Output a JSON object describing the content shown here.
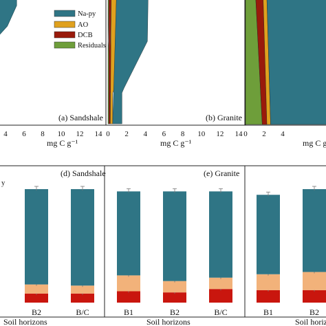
{
  "legend": {
    "entries": [
      {
        "label": "Na-py",
        "color": "#2f7585"
      },
      {
        "label": "AO",
        "color": "#e0a11e"
      },
      {
        "label": "DCB",
        "color": "#991a0b"
      },
      {
        "label": "Residuals",
        "color": "#6e9e3a"
      }
    ]
  },
  "top_panels": {
    "xlabel": "mg C g⁻¹",
    "ticks_a": [
      "4",
      "6",
      "8",
      "10",
      "12",
      "14"
    ],
    "ticks_b": [
      "0",
      "2",
      "4",
      "6",
      "8",
      "10",
      "12",
      "14"
    ],
    "ticks_c": [
      "0",
      "2",
      "4"
    ],
    "label_a": "(a) Sandshale",
    "label_b": "(b) Granite"
  },
  "bottom_panels": {
    "xlabel": "Soil horizons",
    "colors": {
      "top": "#2f7585",
      "mid": "#f2b27a",
      "low": "#c9160e",
      "err": "#777777"
    },
    "label_d": "(d) Sandshale",
    "label_e": "(e) Granite",
    "partial_legend_text": "y",
    "cat_d": [
      "B2",
      "B/C"
    ],
    "cat_e": [
      "B1",
      "B2",
      "B/C"
    ],
    "cat_f": [
      "B1",
      "B2"
    ]
  },
  "chart_data": [
    {
      "type": "area",
      "title": "(a) Sandshale",
      "xlabel": "mg C g⁻¹",
      "xlim": [
        0,
        14
      ],
      "series": [
        {
          "name": "Na-py",
          "depth_profile": [
            {
              "x": 5.2,
              "level": "top"
            },
            {
              "x": 4.2,
              "level": "upper"
            }
          ]
        }
      ]
    },
    {
      "type": "area",
      "title": "(b) Granite",
      "xlabel": "mg C g⁻¹",
      "xlim": [
        0,
        14
      ],
      "series": [
        {
          "name": "Residuals",
          "x_right": [
            0.1,
            0.1
          ]
        },
        {
          "name": "DCB",
          "x_right": [
            0.35,
            0.25
          ]
        },
        {
          "name": "AO",
          "x_right": [
            0.9,
            0.5
          ]
        },
        {
          "name": "Na-py",
          "x_right": [
            4.3,
            1.5
          ]
        }
      ]
    },
    {
      "type": "area",
      "title": "",
      "xlabel": "mg C g⁻¹",
      "xlim": [
        0,
        5
      ],
      "series": [
        {
          "name": "Residuals",
          "x_right": [
            1.1,
            1.8
          ]
        },
        {
          "name": "DCB",
          "x_right": [
            1.9,
            2.3
          ]
        },
        {
          "name": "AO",
          "x_right": [
            2.3,
            2.7
          ]
        },
        {
          "name": "Na-py",
          "x_right": [
            5.0,
            5.0
          ]
        }
      ]
    },
    {
      "type": "bar",
      "title": "(d) Sandshale",
      "categories": [
        "B2",
        "B/C"
      ],
      "series": [
        {
          "key": "low",
          "values": [
            8,
            8
          ]
        },
        {
          "key": "mid",
          "values": [
            8,
            7
          ]
        },
        {
          "key": "top",
          "values": [
            84,
            85
          ]
        }
      ],
      "ylim": [
        0,
        100
      ]
    },
    {
      "type": "bar",
      "title": "(e) Granite",
      "categories": [
        "B1",
        "B2",
        "B/C"
      ],
      "series": [
        {
          "key": "low",
          "values": [
            10,
            9,
            12
          ]
        },
        {
          "key": "mid",
          "values": [
            14,
            10,
            10
          ]
        },
        {
          "key": "top",
          "values": [
            74,
            79,
            76
          ]
        }
      ],
      "ylim": [
        0,
        100
      ]
    },
    {
      "type": "bar",
      "title": "",
      "categories": [
        "B1",
        "B2"
      ],
      "series": [
        {
          "key": "low",
          "values": [
            11,
            11
          ]
        },
        {
          "key": "mid",
          "values": [
            14,
            16
          ]
        },
        {
          "key": "top",
          "values": [
            70,
            73
          ]
        }
      ],
      "ylim": [
        0,
        100
      ]
    }
  ]
}
